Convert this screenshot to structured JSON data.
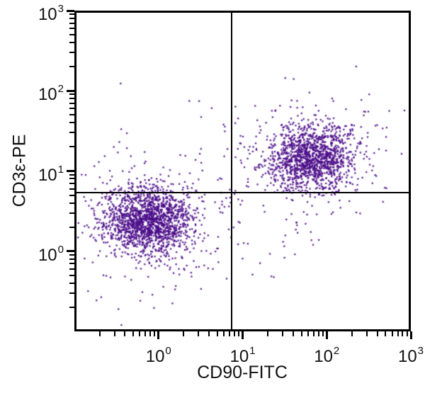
{
  "chart_data": {
    "type": "scatter",
    "title": "",
    "xlabel": "CD90-FITC",
    "ylabel": "CD3ε-PE",
    "x_scale": "log",
    "y_scale": "log",
    "xlim": [
      0.1,
      1000
    ],
    "ylim": [
      0.1,
      1000
    ],
    "grid": false,
    "x_ticks": [
      {
        "base": "10",
        "exp": "0"
      },
      {
        "base": "10",
        "exp": "1"
      },
      {
        "base": "10",
        "exp": "2"
      },
      {
        "base": "10",
        "exp": "3"
      }
    ],
    "y_ticks": [
      {
        "base": "10",
        "exp": "3"
      },
      {
        "base": "10",
        "exp": "2"
      },
      {
        "base": "10",
        "exp": "1"
      },
      {
        "base": "10",
        "exp": "0"
      }
    ],
    "minor_tick_mantissas": [
      2,
      3,
      4,
      5,
      6,
      7,
      8,
      9
    ],
    "dot_color": "#4b0d89",
    "axis_color": "#000000",
    "text_color": "#111111",
    "quadrant_gate": {
      "x": 7.4,
      "y": 5.4
    },
    "populations": [
      {
        "name": "CD90- CD3e- double-negative cluster",
        "n": 1600,
        "x_center": 0.75,
        "y_center": 2.35,
        "x_log_sd": 0.26,
        "y_log_sd": 0.21
      },
      {
        "name": "double-negative halo",
        "n": 230,
        "x_center": 0.75,
        "y_center": 2.35,
        "x_log_sd": 0.52,
        "y_log_sd": 0.45
      },
      {
        "name": "CD90+ CD3e+ double-positive cluster",
        "n": 1300,
        "x_center": 66,
        "y_center": 14.5,
        "x_log_sd": 0.26,
        "y_log_sd": 0.2
      },
      {
        "name": "double-positive halo",
        "n": 200,
        "x_center": 66,
        "y_center": 14.5,
        "x_log_sd": 0.52,
        "y_log_sd": 0.4
      },
      {
        "name": "intermediate scatter",
        "n": 80,
        "x_center": 6,
        "y_center": 6,
        "x_log_sd": 0.75,
        "y_log_sd": 0.6
      }
    ],
    "seed": 20
  }
}
